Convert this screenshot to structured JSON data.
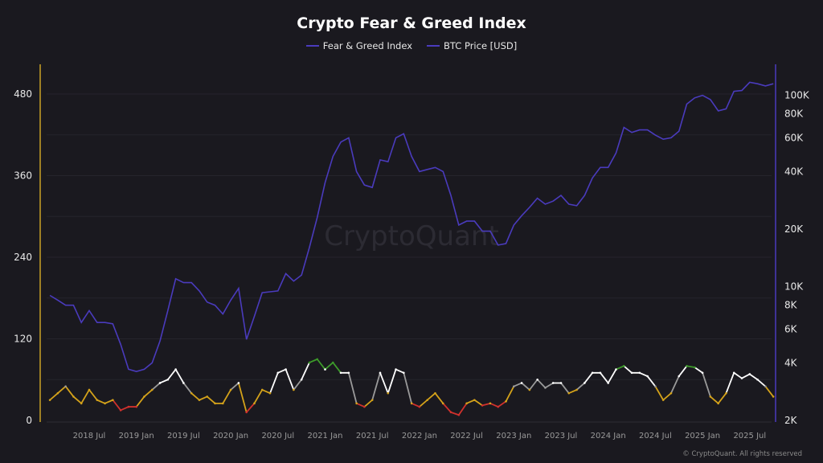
{
  "chart_data": {
    "type": "line",
    "title": "Crypto Fear & Greed Index",
    "legend": {
      "placement": "top-center"
    },
    "grid": true,
    "x": [
      "2018-02",
      "2018-03",
      "2018-04",
      "2018-05",
      "2018-06",
      "2018-07",
      "2018-08",
      "2018-09",
      "2018-10",
      "2018-11",
      "2018-12",
      "2019-01",
      "2019-02",
      "2019-03",
      "2019-04",
      "2019-05",
      "2019-06",
      "2019-07",
      "2019-08",
      "2019-09",
      "2019-10",
      "2019-11",
      "2019-12",
      "2020-01",
      "2020-02",
      "2020-03",
      "2020-04",
      "2020-05",
      "2020-06",
      "2020-07",
      "2020-08",
      "2020-09",
      "2020-10",
      "2020-11",
      "2020-12",
      "2021-01",
      "2021-02",
      "2021-03",
      "2021-04",
      "2021-05",
      "2021-06",
      "2021-07",
      "2021-08",
      "2021-09",
      "2021-10",
      "2021-11",
      "2021-12",
      "2022-01",
      "2022-02",
      "2022-03",
      "2022-04",
      "2022-05",
      "2022-06",
      "2022-07",
      "2022-08",
      "2022-09",
      "2022-10",
      "2022-11",
      "2022-12",
      "2023-01",
      "2023-02",
      "2023-03",
      "2023-04",
      "2023-05",
      "2023-06",
      "2023-07",
      "2023-08",
      "2023-09",
      "2023-10",
      "2023-11",
      "2023-12",
      "2024-01",
      "2024-02",
      "2024-03",
      "2024-04",
      "2024-05",
      "2024-06",
      "2024-07",
      "2024-08",
      "2024-09",
      "2024-10",
      "2024-11",
      "2024-12",
      "2025-01",
      "2025-02",
      "2025-03",
      "2025-04",
      "2025-05",
      "2025-06",
      "2025-07",
      "2025-08",
      "2025-09",
      "2025-10"
    ],
    "x_ticks": [
      "2018 Jul",
      "2019 Jan",
      "2019 Jul",
      "2020 Jan",
      "2020 Jul",
      "2021 Jan",
      "2021 Jul",
      "2022 Jan",
      "2022 Jul",
      "2023 Jan",
      "2023 Jul",
      "2024 Jan",
      "2024 Jul",
      "2025 Jan",
      "2025 Jul"
    ],
    "y_left": {
      "scale": "linear",
      "range": [
        0,
        500
      ],
      "ticks": [
        "0",
        "120",
        "240",
        "360",
        "480"
      ],
      "color": "#c9a227"
    },
    "y_right": {
      "scale": "log",
      "range": [
        2000,
        125000
      ],
      "ticks": [
        {
          "v": 2000,
          "label": "2K"
        },
        {
          "v": 4000,
          "label": "4K"
        },
        {
          "v": 6000,
          "label": "6K"
        },
        {
          "v": 8000,
          "label": "8K"
        },
        {
          "v": 10000,
          "label": "10K"
        },
        {
          "v": 20000,
          "label": "20K"
        },
        {
          "v": 40000,
          "label": "40K"
        },
        {
          "v": 60000,
          "label": "60K"
        },
        {
          "v": 80000,
          "label": "80K"
        },
        {
          "v": 100000,
          "label": "100K"
        }
      ],
      "color": "#4a3bbd"
    },
    "series": [
      {
        "name": "Fear & Greed Index",
        "axis": "left",
        "color": "#4a3bbd",
        "zone_colors": {
          "extreme_fear": "#d0312d",
          "fear": "#d4a21a",
          "neutral": "#9a9a9a",
          "greed": "#ffffff",
          "extreme_greed": "#3d9a2a"
        },
        "values": [
          30,
          40,
          50,
          35,
          25,
          45,
          30,
          25,
          30,
          15,
          20,
          20,
          35,
          45,
          55,
          60,
          75,
          55,
          40,
          30,
          35,
          25,
          25,
          45,
          55,
          12,
          25,
          45,
          40,
          70,
          75,
          45,
          60,
          85,
          90,
          75,
          85,
          70,
          70,
          25,
          20,
          30,
          70,
          40,
          75,
          70,
          25,
          20,
          30,
          40,
          25,
          12,
          8,
          25,
          30,
          22,
          25,
          20,
          28,
          50,
          55,
          45,
          60,
          48,
          55,
          55,
          40,
          45,
          55,
          70,
          70,
          55,
          75,
          80,
          70,
          70,
          65,
          50,
          30,
          40,
          65,
          80,
          78,
          70,
          35,
          25,
          40,
          70,
          62,
          68,
          60,
          50,
          35
        ]
      },
      {
        "name": "BTC Price [USD]",
        "axis": "right",
        "color": "#4a3bbd",
        "values": [
          9000,
          8500,
          8000,
          8000,
          6500,
          7500,
          6500,
          6500,
          6400,
          5000,
          3700,
          3600,
          3700,
          4000,
          5200,
          7500,
          11000,
          10500,
          10500,
          9500,
          8300,
          8000,
          7200,
          8500,
          9800,
          5300,
          7000,
          9300,
          9400,
          9500,
          11700,
          10700,
          11500,
          16000,
          23000,
          35000,
          48000,
          57000,
          60000,
          40000,
          34000,
          33000,
          46000,
          45000,
          60000,
          63000,
          48000,
          40000,
          41000,
          42000,
          40000,
          30000,
          21000,
          22000,
          22000,
          19500,
          19500,
          16500,
          16800,
          21000,
          23500,
          26000,
          29000,
          27000,
          28000,
          30000,
          27000,
          26500,
          30000,
          37000,
          42000,
          42000,
          50000,
          68000,
          64000,
          66000,
          66000,
          62000,
          59000,
          60000,
          65000,
          90000,
          97000,
          100000,
          95000,
          83000,
          85000,
          105000,
          106000,
          117000,
          115000,
          112000,
          115000
        ]
      }
    ]
  },
  "watermark": "CryptoQuant",
  "footer": "© CryptoQuant. All rights reserved"
}
